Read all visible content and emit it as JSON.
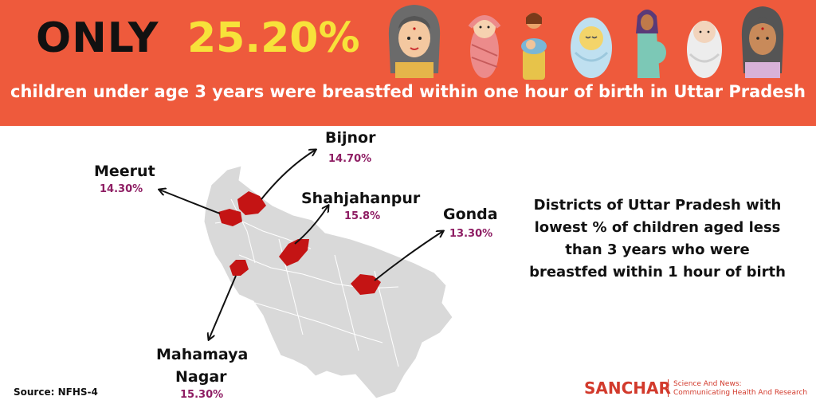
{
  "header": {
    "only": "ONLY",
    "percentage": "25.20%",
    "subline_before": "children under age 3 years were ",
    "subline_highlight": "breastfed",
    "subline_after": " within one hour of birth in Uttar Pradesh"
  },
  "districts": [
    {
      "name": "Bijnor",
      "value": "14.70%"
    },
    {
      "name": "Meerut",
      "value": "14.30%"
    },
    {
      "name": "Shahjahanpur",
      "value": "15.8%"
    },
    {
      "name": "Gonda",
      "value": "13.30%"
    },
    {
      "name": "Mahamaya",
      "name2": "Nagar",
      "value": "15.30%"
    }
  ],
  "side_text": {
    "line1": "Districts of Uttar Pradesh with",
    "line2": "lowest % of children aged less",
    "line3": "than 3 years who were",
    "line4": "breastfed within 1 hour of birth"
  },
  "footer": {
    "source": "Source: NFHS-4",
    "brand": "SANCHAR",
    "tagline1": "Science And News:",
    "tagline2": "Communicating Health And Research"
  },
  "colors": {
    "banner": "#ee5a3c",
    "highlight": "#f7e23a",
    "district_fill": "#c41414",
    "state_fill": "#d9d9d9",
    "value_text": "#8e1d63"
  },
  "icons": [
    "woman-icon",
    "swaddled-baby-icon",
    "breastfeeding-mother-icon",
    "baby-in-blanket-icon",
    "pregnant-woman-icon",
    "newborn-icon",
    "elder-woman-icon"
  ]
}
